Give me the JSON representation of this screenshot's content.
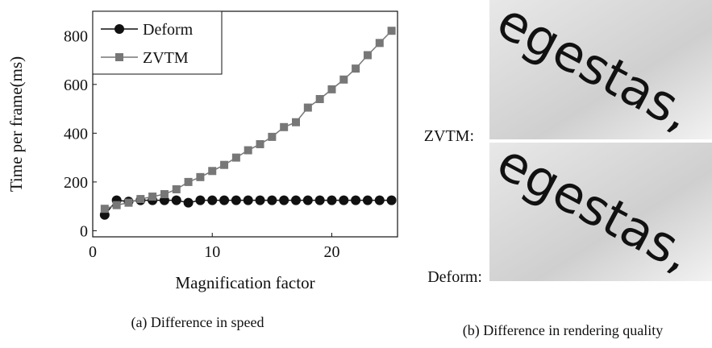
{
  "chart_data": {
    "type": "line",
    "x_label": "Magnification factor",
    "y_label": "Time per frame(ms)",
    "x": [
      1,
      2,
      3,
      4,
      5,
      6,
      7,
      8,
      9,
      10,
      11,
      12,
      13,
      14,
      15,
      16,
      17,
      18,
      19,
      20,
      21,
      22,
      23,
      24,
      25
    ],
    "series": [
      {
        "name": "Deform",
        "color": "#111111",
        "marker": "circle",
        "values": [
          65,
          125,
          120,
          125,
          125,
          125,
          125,
          115,
          125,
          125,
          125,
          125,
          125,
          125,
          125,
          125,
          125,
          125,
          125,
          125,
          125,
          125,
          125,
          125,
          125
        ]
      },
      {
        "name": "ZVTM",
        "color": "#777777",
        "marker": "square",
        "values": [
          90,
          105,
          115,
          130,
          140,
          150,
          170,
          200,
          220,
          245,
          270,
          300,
          330,
          355,
          385,
          425,
          445,
          505,
          540,
          580,
          620,
          665,
          720,
          770,
          820
        ]
      }
    ],
    "xlim": [
      0,
      25.5
    ],
    "ylim": [
      -25,
      900
    ],
    "xticks": [
      0,
      10,
      20
    ],
    "yticks": [
      0,
      200,
      400,
      600,
      800
    ],
    "legend": "upper left"
  },
  "figure": {
    "caption_a": "(a) Difference in speed",
    "caption_b": "(b) Difference in rendering quality",
    "image_labels": [
      "ZVTM:",
      "Deform:"
    ],
    "image_text": "egestas,"
  }
}
